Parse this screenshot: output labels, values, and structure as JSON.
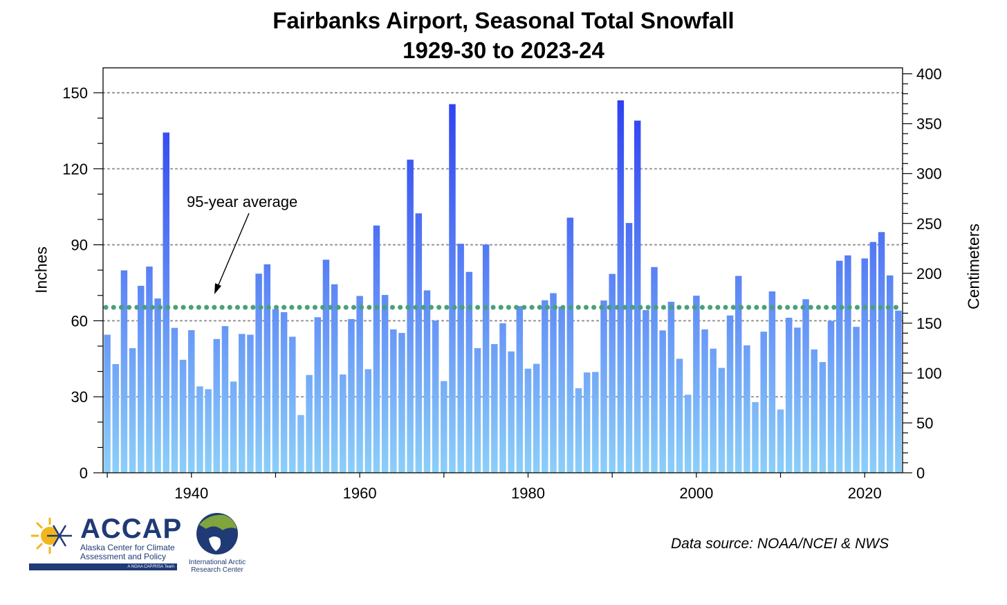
{
  "chart_data": {
    "type": "bar",
    "title": "Fairbanks Airport, Seasonal Total Snowfall",
    "subtitle": "1929-30 to 2023-24",
    "ylabel": "Inches",
    "ylabel_right": "Centimeters",
    "xlabel": "",
    "ylim": [
      0,
      150
    ],
    "ylim_right_cm": [
      0,
      400
    ],
    "y_ticks": [
      0,
      30,
      60,
      90,
      120,
      150
    ],
    "y_ticks_right": [
      0,
      50,
      100,
      150,
      200,
      250,
      300,
      350,
      400
    ],
    "x_ticks": [
      1940,
      1960,
      1980,
      2000,
      2020
    ],
    "grid": "horizontal dotted",
    "bar_gradient": {
      "bottom": "#8ccff9",
      "top": "#2d3ef1"
    },
    "average": {
      "label": "95-year average",
      "value": 65.3,
      "color": "#4aa07a"
    },
    "x": [
      1930,
      1931,
      1932,
      1933,
      1934,
      1935,
      1936,
      1937,
      1938,
      1939,
      1940,
      1941,
      1942,
      1943,
      1944,
      1945,
      1946,
      1947,
      1948,
      1949,
      1950,
      1951,
      1952,
      1953,
      1954,
      1955,
      1956,
      1957,
      1958,
      1959,
      1960,
      1961,
      1962,
      1963,
      1964,
      1965,
      1966,
      1967,
      1968,
      1969,
      1970,
      1971,
      1972,
      1973,
      1974,
      1975,
      1976,
      1977,
      1978,
      1979,
      1980,
      1981,
      1982,
      1983,
      1984,
      1985,
      1986,
      1987,
      1988,
      1989,
      1990,
      1991,
      1992,
      1993,
      1994,
      1995,
      1996,
      1997,
      1998,
      1999,
      2000,
      2001,
      2002,
      2003,
      2004,
      2005,
      2006,
      2007,
      2008,
      2009,
      2010,
      2011,
      2012,
      2013,
      2014,
      2015,
      2016,
      2017,
      2018,
      2019,
      2020,
      2021,
      2022,
      2023,
      2024
    ],
    "values": [
      54.5,
      42.9,
      79.9,
      49.2,
      73.8,
      81.4,
      68.8,
      134.3,
      57.2,
      44.6,
      56.3,
      34.1,
      33.0,
      52.8,
      57.9,
      36.0,
      54.8,
      54.5,
      78.6,
      82.3,
      64.6,
      63.4,
      53.7,
      22.8,
      38.6,
      61.4,
      84.1,
      74.4,
      38.8,
      60.7,
      69.8,
      40.9,
      97.6,
      70.2,
      56.6,
      55.2,
      123.6,
      102.4,
      72.0,
      60.1,
      36.2,
      145.5,
      90.4,
      79.3,
      49.2,
      90.1,
      50.8,
      59.0,
      47.9,
      65.8,
      41.1,
      43.0,
      68.1,
      70.9,
      65.6,
      100.7,
      33.4,
      39.6,
      39.8,
      68.0,
      78.5,
      147.0,
      98.6,
      139.0,
      64.2,
      81.2,
      56.2,
      67.5,
      45.0,
      30.8,
      69.9,
      56.6,
      49.0,
      41.4,
      62.1,
      77.7,
      50.3,
      27.9,
      55.7,
      71.6,
      25.0,
      61.2,
      57.3,
      68.5,
      48.7,
      43.7,
      60.0,
      83.7,
      85.8,
      57.6,
      84.6,
      91.1,
      95.0,
      77.9,
      64.0
    ]
  },
  "source": "Data source: NOAA/NCEI & NWS",
  "logos": {
    "accap": {
      "name": "ACCAP",
      "subtitle1": "Alaska Center for Climate",
      "subtitle2": "Assessment and Policy",
      "bar_text": "A NOAA CAP/RISA Team"
    },
    "iarc": {
      "line1": "International Arctic",
      "line2": "Research Center"
    }
  }
}
